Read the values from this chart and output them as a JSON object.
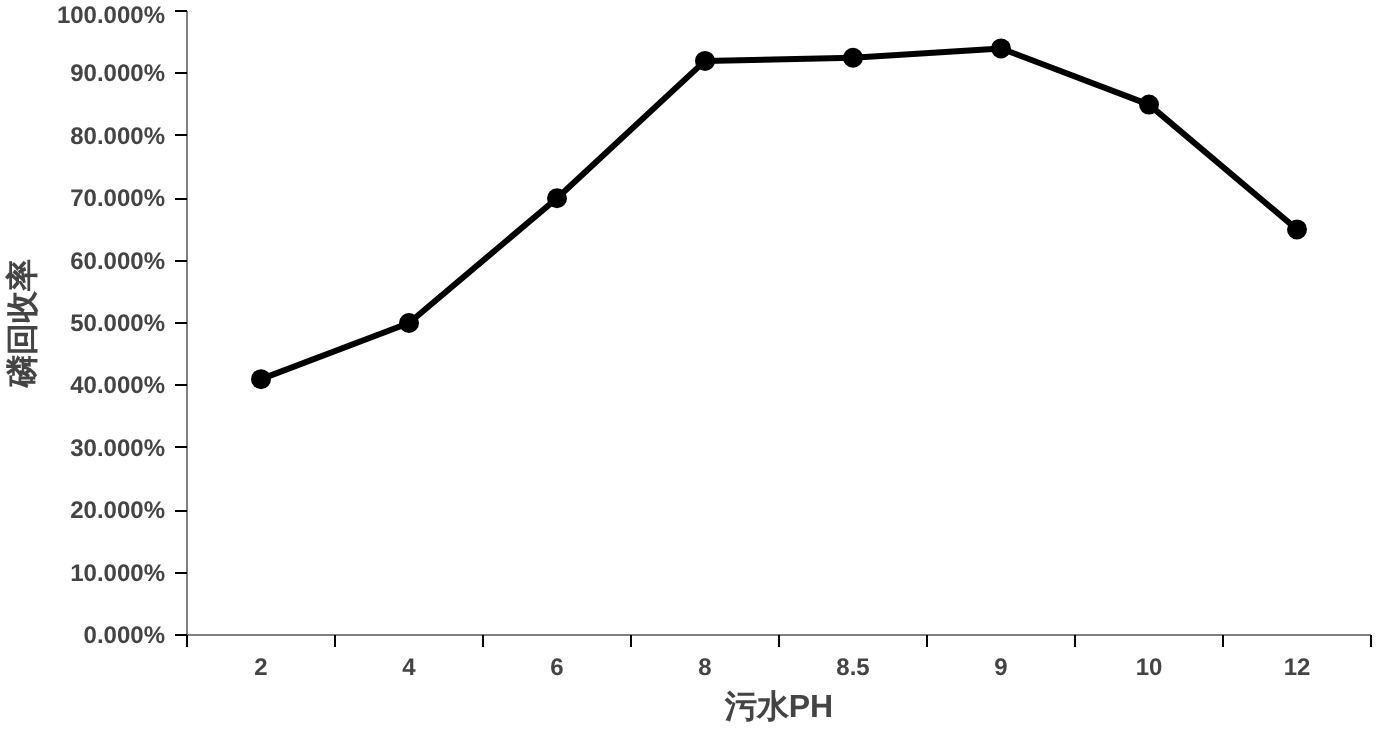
{
  "chart_data": {
    "type": "line",
    "xlabel": "污水PH",
    "ylabel": "磷回收率",
    "categories": [
      "2",
      "4",
      "6",
      "8",
      "8.5",
      "9",
      "10",
      "12"
    ],
    "series": [
      {
        "color": "#000000",
        "values": [
          41,
          50,
          70,
          92,
          92.5,
          94,
          85,
          65
        ]
      }
    ],
    "ylim": [
      0,
      100
    ],
    "yticks": [
      {
        "value": 0,
        "label": "0.000%"
      },
      {
        "value": 10,
        "label": "10.000%"
      },
      {
        "value": 20,
        "label": "20.000%"
      },
      {
        "value": 30,
        "label": "30.000%"
      },
      {
        "value": 40,
        "label": "40.000%"
      },
      {
        "value": 50,
        "label": "50.000%"
      },
      {
        "value": 60,
        "label": "60.000%"
      },
      {
        "value": 70,
        "label": "70.000%"
      },
      {
        "value": 80,
        "label": "80.000%"
      },
      {
        "value": 90,
        "label": "90.000%"
      },
      {
        "value": 100,
        "label": "100.000%"
      }
    ],
    "grid": false,
    "marker": "circle",
    "line_style": "solid"
  }
}
